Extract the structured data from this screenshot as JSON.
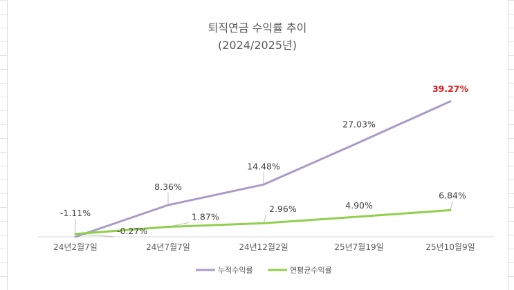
{
  "chart_data": {
    "type": "line",
    "title": "퇴직연금 수익률 추이",
    "subtitle": "(2024/2025년)",
    "categories": [
      "24년2월7일",
      "24년7월7일",
      "24년12월2일",
      "25년7월19일",
      "25년10월9일"
    ],
    "series": [
      {
        "name": "누적수익률",
        "values": [
          -1.11,
          8.36,
          14.48,
          27.03,
          39.27
        ],
        "labels": [
          "-1.11%",
          "8.36%",
          "14.48%",
          "27.03%",
          "39.27%"
        ],
        "color": "#a99bc8"
      },
      {
        "name": "연평균수익률",
        "values": [
          -0.27,
          1.87,
          2.96,
          4.9,
          6.84
        ],
        "labels": [
          "-0.27%",
          "1.87%",
          "2.96%",
          "4.90%",
          "6.84%"
        ],
        "color": "#8fcf4b"
      }
    ],
    "highlight_color": "#e0191a",
    "ylim": [
      -2,
      45
    ],
    "grid": false,
    "legend_position": "bottom"
  }
}
